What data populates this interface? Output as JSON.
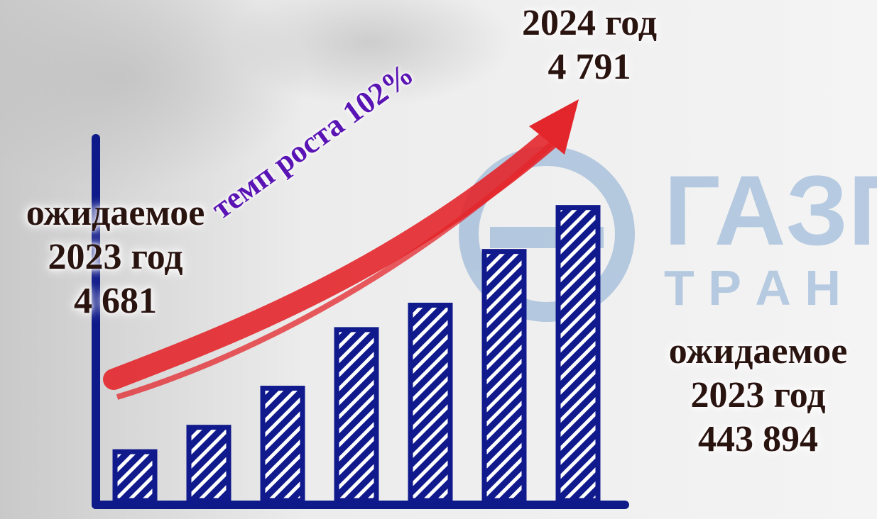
{
  "labels": {
    "left": [
      "ожидаемое",
      "2023 год",
      "4 681"
    ],
    "top": [
      "2024 год",
      "4 791"
    ],
    "right": [
      "ожидаемое",
      "2023 год",
      "443 894"
    ],
    "growth": "темп роста 102%"
  },
  "watermark": {
    "line1": "ГАЗП",
    "line2": "Т Р А Н"
  },
  "colors": {
    "bar": "#101a8c",
    "axis": "#0f1a8a",
    "arrow": "#e3262b",
    "growth_text": "#5a14b4",
    "watermark": "#2c6db8"
  },
  "chart_data": {
    "type": "bar",
    "categories": [
      "",
      "",
      "",
      "",
      "",
      "",
      ""
    ],
    "values": [
      1.0,
      1.5,
      2.3,
      3.5,
      4.0,
      5.1,
      6.0
    ],
    "ylim": [
      0,
      7.2
    ],
    "grid": false,
    "legend": "none",
    "annotations": [
      "темп роста 102%"
    ]
  }
}
